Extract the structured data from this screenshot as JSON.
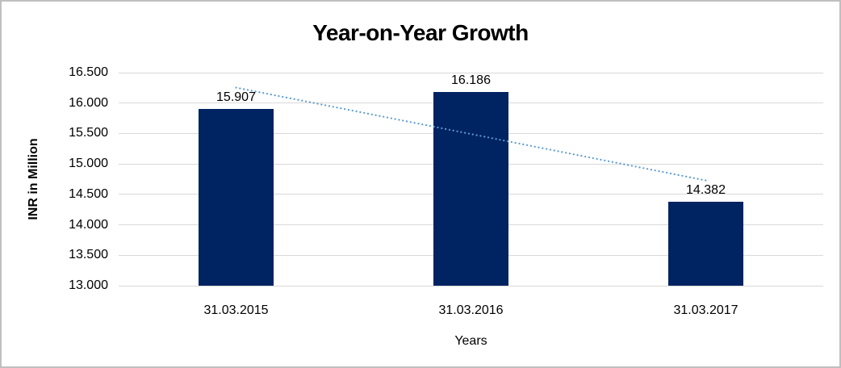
{
  "chart_data": {
    "type": "bar",
    "title": "Year-on-Year Growth",
    "xlabel": "Years",
    "ylabel": "INR in Million",
    "categories": [
      "31.03.2015",
      "31.03.2016",
      "31.03.2017"
    ],
    "values": [
      15907,
      16186,
      14382
    ],
    "value_labels": [
      "15.907",
      "16.186",
      "14.382"
    ],
    "ylim": [
      13000,
      16500
    ],
    "ytick_step": 500,
    "ytick_labels": [
      "13.000",
      "13.500",
      "14.000",
      "14.500",
      "15.000",
      "15.500",
      "16.000",
      "16.500"
    ],
    "grid": "horizontal-only",
    "legend": "none",
    "colors": {
      "bar": "#002361",
      "gridline": "#d9d9d9",
      "trendline": "#5b9bd5",
      "text": "#000000",
      "frame_border": "#bfbfbf"
    },
    "trendline": {
      "type": "linear",
      "style": "dotted",
      "start_value": 16254,
      "end_value": 14729
    }
  }
}
